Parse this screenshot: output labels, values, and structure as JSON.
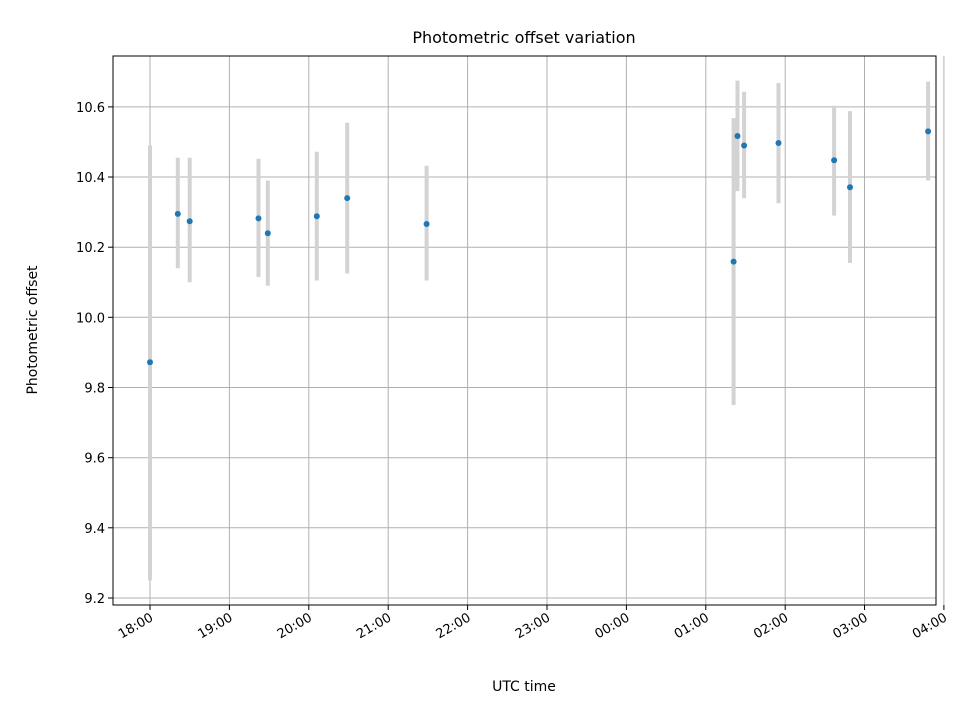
{
  "chart_data": {
    "type": "scatter",
    "title": "Photometric offset variation",
    "xlabel": "UTC time",
    "ylabel": "Photometric offset",
    "x_unit": "UTC time (HH:MM), second day after 00:00",
    "xlim": [
      "17:32",
      "03:54"
    ],
    "ylim": [
      9.18,
      10.745
    ],
    "x_ticks": [
      "18:00",
      "19:00",
      "20:00",
      "21:00",
      "22:00",
      "23:00",
      "00:00",
      "01:00",
      "02:00",
      "03:00",
      "04:00"
    ],
    "y_ticks": [
      9.2,
      9.4,
      9.6,
      9.8,
      10.0,
      10.2,
      10.4,
      10.6
    ],
    "grid": true,
    "points": [
      {
        "time": "18:00",
        "y": 9.872,
        "err_low": 9.25,
        "err_high": 10.49
      },
      {
        "time": "18:21",
        "y": 10.295,
        "err_low": 10.14,
        "err_high": 10.455
      },
      {
        "time": "18:30",
        "y": 10.274,
        "err_low": 10.1,
        "err_high": 10.455
      },
      {
        "time": "19:22",
        "y": 10.282,
        "err_low": 10.115,
        "err_high": 10.452
      },
      {
        "time": "19:29",
        "y": 10.24,
        "err_low": 10.09,
        "err_high": 10.39
      },
      {
        "time": "20:06",
        "y": 10.288,
        "err_low": 10.105,
        "err_high": 10.472
      },
      {
        "time": "20:29",
        "y": 10.34,
        "err_low": 10.125,
        "err_high": 10.555
      },
      {
        "time": "21:29",
        "y": 10.266,
        "err_low": 10.105,
        "err_high": 10.432
      },
      {
        "time": "01:21",
        "y": 10.159,
        "err_low": 9.75,
        "err_high": 10.568
      },
      {
        "time": "01:24",
        "y": 10.517,
        "err_low": 10.36,
        "err_high": 10.675
      },
      {
        "time": "01:29",
        "y": 10.49,
        "err_low": 10.34,
        "err_high": 10.643
      },
      {
        "time": "01:55",
        "y": 10.497,
        "err_low": 10.325,
        "err_high": 10.668
      },
      {
        "time": "02:37",
        "y": 10.448,
        "err_low": 10.29,
        "err_high": 10.603
      },
      {
        "time": "02:49",
        "y": 10.371,
        "err_low": 10.155,
        "err_high": 10.588
      },
      {
        "time": "03:48",
        "y": 10.53,
        "err_low": 10.39,
        "err_high": 10.672
      }
    ],
    "colors": {
      "point": "#1f77b4",
      "errorbar": "#d3d3d3",
      "grid": "#b0b0b0"
    }
  }
}
